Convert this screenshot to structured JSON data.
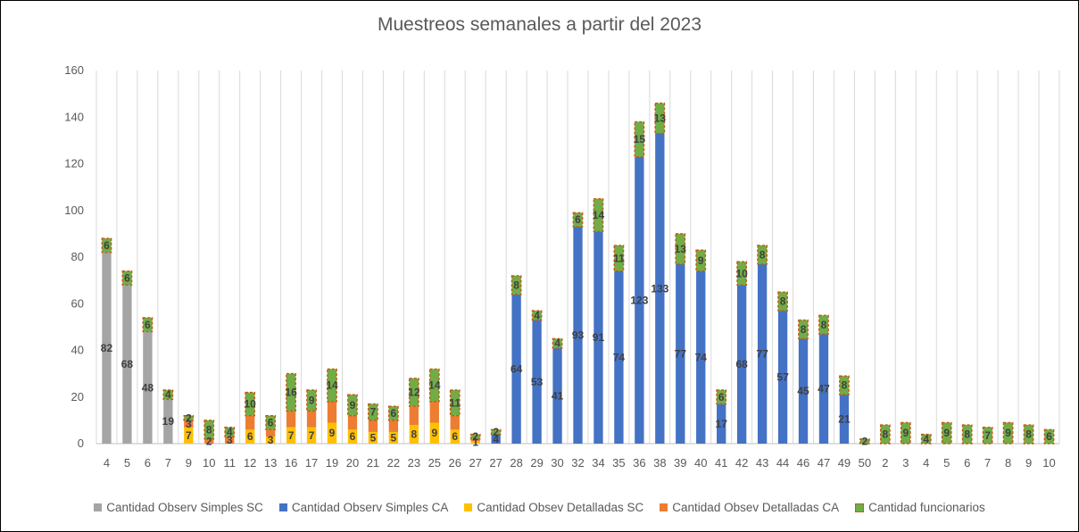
{
  "chart_data": {
    "type": "bar",
    "stacked": true,
    "title": "Muestreos semanales a partir del 2023",
    "xlabel": "",
    "ylabel": "",
    "ylim": [
      0,
      160
    ],
    "yticks": [
      "0",
      "20",
      "40",
      "60",
      "80",
      "100",
      "120",
      "140",
      "160"
    ],
    "grid": "vertical",
    "legend_position": "bottom",
    "categories": [
      "4",
      "5",
      "6",
      "7",
      "9",
      "10",
      "11",
      "12",
      "13",
      "16",
      "17",
      "19",
      "20",
      "21",
      "22",
      "23",
      "25",
      "26",
      "27",
      "27",
      "28",
      "29",
      "30",
      "32",
      "34",
      "35",
      "36",
      "38",
      "39",
      "40",
      "41",
      "42",
      "43",
      "44",
      "46",
      "47",
      "49",
      "50",
      "2",
      "3",
      "4",
      "5",
      "6",
      "7",
      "8",
      "9",
      "10"
    ],
    "series": [
      {
        "name": "Cantidad Observ Simples SC",
        "color": "#a5a5a5",
        "values": [
          82,
          68,
          48,
          19,
          0,
          0,
          0,
          0,
          0,
          0,
          0,
          0,
          0,
          0,
          0,
          0,
          0,
          0,
          0,
          0,
          0,
          0,
          0,
          0,
          0,
          0,
          0,
          0,
          0,
          0,
          0,
          0,
          0,
          0,
          0,
          0,
          0,
          0,
          0,
          0,
          0,
          0,
          0,
          0,
          0,
          0,
          0
        ]
      },
      {
        "name": "Cantidad Observ Simples CA",
        "color": "#4472c4",
        "values": [
          0,
          0,
          0,
          0,
          0,
          0,
          0,
          0,
          0,
          0,
          0,
          0,
          0,
          0,
          0,
          0,
          0,
          0,
          0,
          4,
          64,
          53,
          41,
          93,
          91,
          74,
          123,
          133,
          77,
          74,
          17,
          68,
          77,
          57,
          45,
          47,
          21,
          0,
          0,
          0,
          0,
          0,
          0,
          0,
          0,
          0,
          0
        ]
      },
      {
        "name": "Cantidad Obsev Detalladas SC",
        "color": "#ffc000",
        "values": [
          0,
          0,
          0,
          0,
          7,
          0,
          0,
          6,
          3,
          7,
          7,
          9,
          6,
          5,
          5,
          8,
          9,
          6,
          1,
          0,
          0,
          0,
          0,
          0,
          0,
          0,
          0,
          0,
          0,
          0,
          0,
          0,
          0,
          0,
          0,
          0,
          0,
          0,
          0,
          0,
          0,
          0,
          0,
          0,
          0,
          0,
          0
        ]
      },
      {
        "name": "Cantidad Obsev Detalladas CA",
        "color": "#ed7d31",
        "values": [
          0,
          0,
          0,
          0,
          3,
          2,
          3,
          6,
          3,
          7,
          7,
          9,
          6,
          5,
          5,
          8,
          9,
          6,
          1,
          0,
          0,
          0,
          0,
          0,
          0,
          0,
          0,
          0,
          0,
          0,
          0,
          0,
          0,
          0,
          0,
          0,
          0,
          0,
          0,
          0,
          0,
          0,
          0,
          0,
          0,
          0,
          0
        ]
      },
      {
        "name": "Cantidad funcionarios",
        "color": "#70ad47",
        "values": [
          6,
          6,
          6,
          4,
          2,
          8,
          4,
          10,
          6,
          16,
          9,
          14,
          9,
          7,
          6,
          12,
          14,
          11,
          2,
          2,
          8,
          4,
          4,
          6,
          14,
          11,
          15,
          13,
          13,
          9,
          6,
          10,
          8,
          8,
          8,
          8,
          8,
          2,
          8,
          9,
          4,
          9,
          8,
          7,
          9,
          8,
          6
        ]
      }
    ],
    "data_labels": {
      "Cantidad Observ Simples SC": [
        "82",
        "68",
        "48",
        "19",
        "",
        "",
        "",
        "",
        "",
        "",
        "",
        "",
        "",
        "",
        "",
        "",
        "",
        "",
        "",
        "",
        "",
        "",
        "",
        "",
        "",
        "",
        "",
        "",
        "",
        "",
        "",
        "",
        "",
        "",
        "",
        "",
        "",
        "",
        "",
        "",
        "",
        "",
        "",
        "",
        "",
        "",
        ""
      ],
      "Cantidad Observ Simples CA": [
        "",
        "",
        "",
        "",
        "",
        "",
        "",
        "",
        "",
        "",
        "",
        "",
        "",
        "",
        "",
        "",
        "",
        "",
        "",
        "4",
        "64",
        "53",
        "41",
        "93",
        "91",
        "74",
        "123",
        "133",
        "77",
        "74",
        "17",
        "68",
        "77",
        "57",
        "45",
        "47",
        "21",
        "",
        "",
        "",
        "",
        "",
        "",
        "",
        "",
        "",
        ""
      ],
      "Cantidad Obsev Detalladas SC": [
        "",
        "",
        "",
        "",
        "7",
        "",
        "",
        "6",
        "3",
        "7",
        "7",
        "9",
        "6",
        "5",
        "5",
        "8",
        "9",
        "6",
        "1",
        "",
        "",
        "",
        "",
        "",
        "",
        "",
        "",
        "",
        "",
        "",
        "",
        "",
        "",
        "",
        "",
        "",
        "",
        "",
        "",
        "",
        "",
        "",
        "",
        "",
        "",
        "",
        ""
      ],
      "Cantidad Obsev Detalladas CA": [
        "",
        "",
        "",
        "",
        "3",
        "2",
        "3",
        "",
        "",
        "",
        "",
        "",
        "",
        "",
        "",
        "",
        "",
        "",
        "",
        "",
        "",
        "",
        "",
        "",
        "",
        "",
        "",
        "",
        "",
        "",
        "",
        "",
        "",
        "",
        "",
        "",
        "",
        "",
        "",
        "",
        "",
        "",
        "",
        "",
        "",
        "",
        ""
      ],
      "Cantidad funcionarios": [
        "6",
        "6",
        "6",
        "4",
        "2",
        "8",
        "4",
        "10",
        "6",
        "16",
        "9",
        "14",
        "9",
        "7",
        "6",
        "12",
        "14",
        "11",
        "2",
        "2",
        "8",
        "4",
        "4",
        "6",
        "14",
        "11",
        "15",
        "13",
        "13",
        "9",
        "6",
        "10",
        "8",
        "8",
        "8",
        "8",
        "8",
        "2",
        "8",
        "9",
        "4",
        "9",
        "8",
        "7",
        "9",
        "8",
        "6"
      ]
    }
  }
}
